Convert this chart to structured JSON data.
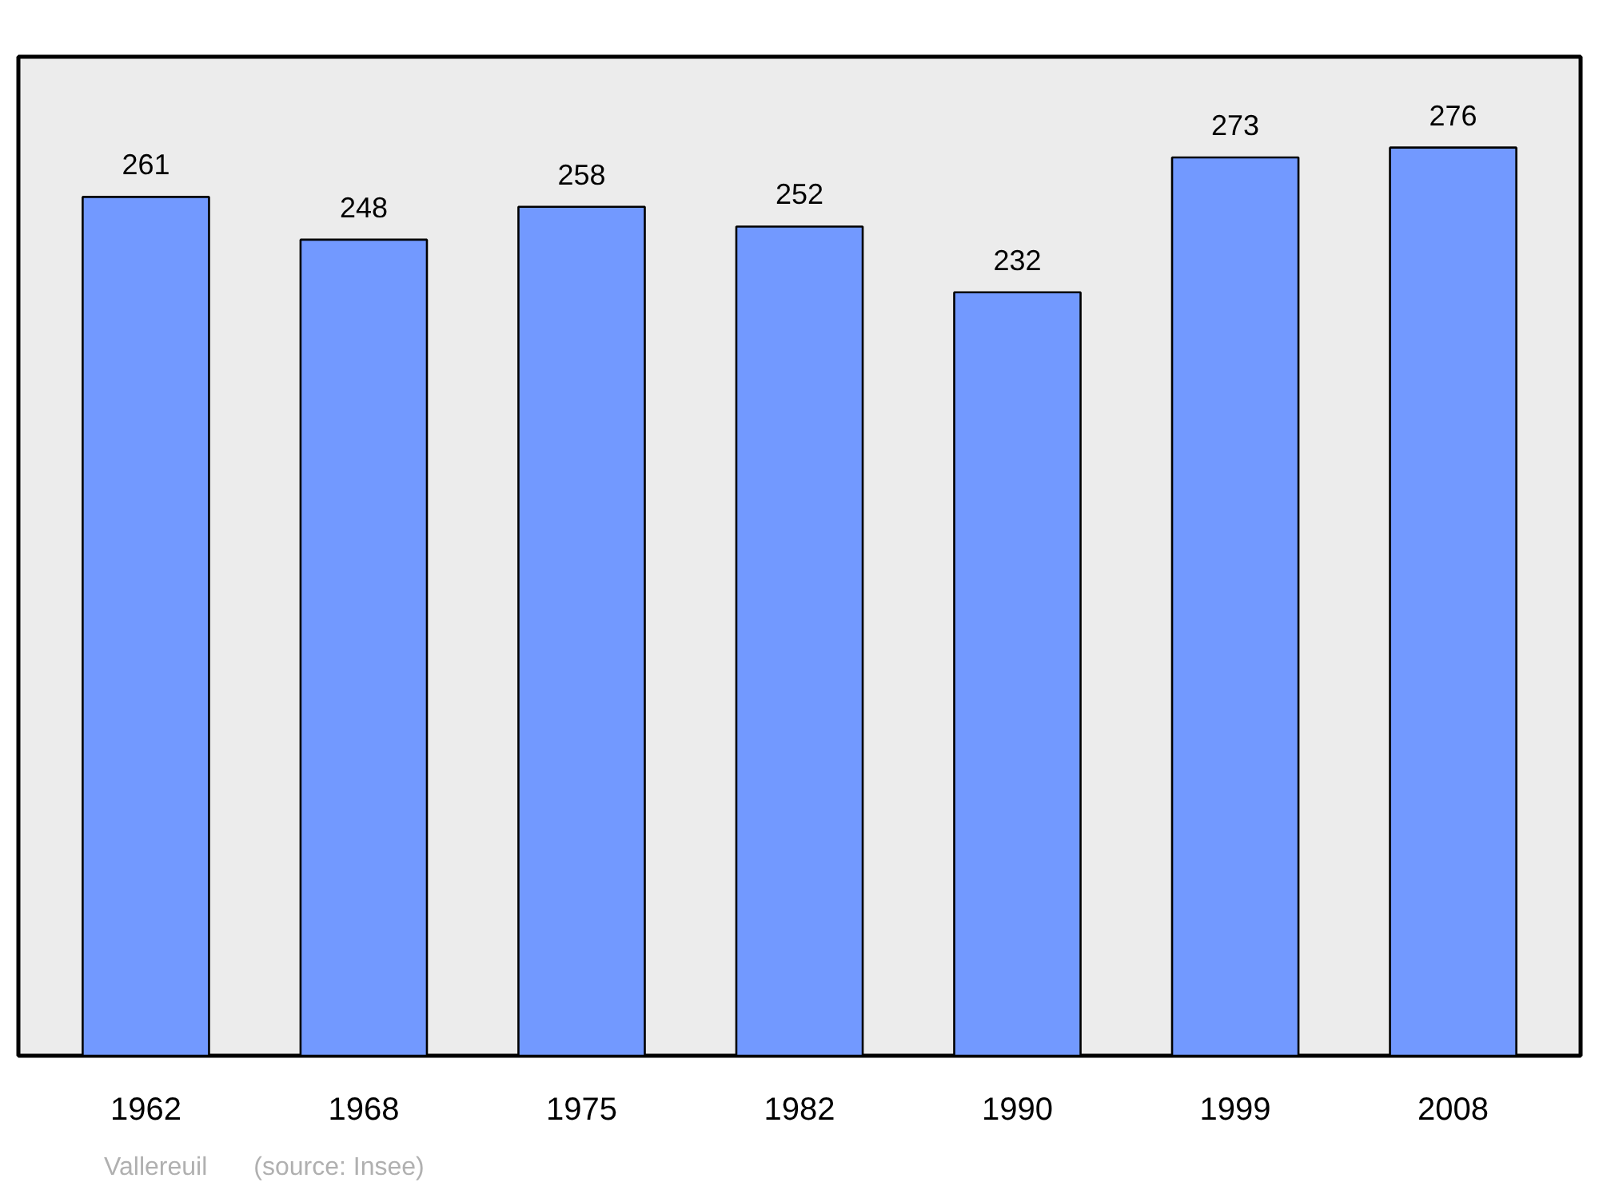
{
  "chart_data": {
    "type": "bar",
    "categories": [
      "1962",
      "1968",
      "1975",
      "1982",
      "1990",
      "1999",
      "2008"
    ],
    "values": [
      261,
      248,
      258,
      252,
      232,
      273,
      276
    ],
    "color": "#7299ff",
    "data_labels": true,
    "grid": false,
    "tick_labels": "x",
    "annotations": [
      "Vallereuil",
      "(source: Insee)"
    ]
  }
}
